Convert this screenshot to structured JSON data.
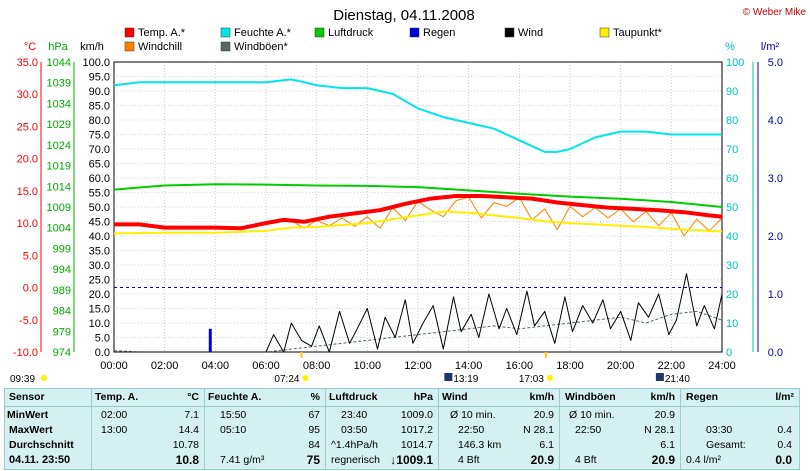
{
  "header": {
    "title": "Dienstag, 04.11.2008",
    "credit": "© Weber Mike"
  },
  "legend": [
    {
      "label": "Temp. A.*",
      "color": "#ff0000"
    },
    {
      "label": "Feuchte A.*",
      "color": "#00e5e5"
    },
    {
      "label": "Luftdruck",
      "color": "#00cc00"
    },
    {
      "label": "Regen",
      "color": "#0000dd"
    },
    {
      "label": "Wind",
      "color": "#000000"
    },
    {
      "label": "Taupunkt*",
      "color": "#ffee00"
    },
    {
      "label": "Windchill",
      "color": "#ff8000"
    },
    {
      "label": "Windböen*",
      "color": "#556666"
    }
  ],
  "axes": {
    "temp_unit": "°C",
    "hpa_unit": "hPa",
    "kmh_unit": "km/h",
    "pct_unit": "%",
    "rain_unit": "l/m²",
    "temp_ticks": [
      "35.0",
      "30.0",
      "25.0",
      "20.0",
      "15.0",
      "10.0",
      "5.0",
      "0.0",
      "-5.0",
      "-10.0"
    ],
    "hpa_ticks": [
      "1044",
      "1039",
      "1034",
      "1029",
      "1024",
      "1019",
      "1014",
      "1009",
      "1004",
      "999",
      "994",
      "989",
      "984",
      "979",
      "974"
    ],
    "kmh_ticks": [
      "100.0",
      "95.0",
      "90.0",
      "85.0",
      "80.0",
      "75.0",
      "70.0",
      "65.0",
      "60.0",
      "55.0",
      "50.0",
      "45.0",
      "40.0",
      "35.0",
      "30.0",
      "25.0",
      "20.0",
      "15.0",
      "10.0",
      "5.0",
      "0.0"
    ],
    "pct_ticks": [
      "100",
      "90",
      "80",
      "70",
      "60",
      "50",
      "40",
      "30",
      "20",
      "10",
      "0"
    ],
    "rain_ticks": [
      "5.0",
      "4.0",
      "3.0",
      "2.0",
      "1.0",
      "0.0"
    ],
    "time_ticks": [
      "00:00",
      "02:00",
      "04:00",
      "06:00",
      "08:00",
      "10:00",
      "12:00",
      "14:00",
      "16:00",
      "18:00",
      "20:00",
      "22:00",
      "24:00"
    ]
  },
  "events": [
    {
      "time": "09:39",
      "kind": "sunrise"
    },
    {
      "time": "07:24",
      "kind": "sunrise-marker"
    },
    {
      "time": "13:19",
      "kind": "moon"
    },
    {
      "time": "17:03",
      "kind": "sunset-marker"
    },
    {
      "time": "21:40",
      "kind": "moon"
    }
  ],
  "chart_data": {
    "type": "line",
    "title": "Dienstag, 04.11.2008",
    "x_unit": "hours",
    "xlim": [
      0,
      24
    ],
    "ylim_kmh": [
      0,
      100
    ],
    "series": [
      {
        "name": "Temp. A.*",
        "axis": "°C",
        "ylim": [
          -10,
          35
        ],
        "x": [
          0,
          1,
          2,
          3,
          4,
          5,
          6,
          6.7,
          7.5,
          8.5,
          9.5,
          10.5,
          11.5,
          12.5,
          13.5,
          14.5,
          15.5,
          16.5,
          17.5,
          18.5,
          19.5,
          20.5,
          21.5,
          22.5,
          23.5,
          24
        ],
        "y": [
          9.8,
          9.8,
          9.3,
          9.3,
          9.3,
          9.2,
          10.0,
          10.5,
          10.2,
          11.0,
          11.5,
          12.0,
          13.0,
          13.8,
          14.2,
          14.2,
          14.0,
          13.8,
          13.2,
          12.8,
          12.4,
          12.2,
          12.0,
          11.7,
          11.2,
          11.0
        ]
      },
      {
        "name": "Feuchte A.*",
        "axis": "%",
        "ylim": [
          0,
          100
        ],
        "x": [
          0,
          1,
          2,
          3,
          4,
          5,
          6,
          7,
          8,
          9,
          10,
          11,
          12,
          13,
          14,
          15,
          16,
          17,
          17.5,
          18,
          19,
          20,
          21,
          22,
          23,
          24
        ],
        "y": [
          92,
          93,
          93,
          93,
          93,
          93,
          93,
          94,
          92,
          91,
          91,
          89,
          84,
          81,
          79,
          77,
          73,
          69,
          69,
          70,
          74,
          76,
          76,
          75,
          75,
          75
        ]
      },
      {
        "name": "Luftdruck",
        "axis": "hPa",
        "ylim": [
          974,
          1044
        ],
        "x": [
          0,
          2,
          4,
          6,
          8,
          10,
          12,
          14,
          16,
          18,
          20,
          22,
          23,
          24
        ],
        "y": [
          1013.2,
          1014.2,
          1014.5,
          1014.4,
          1014.2,
          1014.1,
          1013.8,
          1013.0,
          1012.2,
          1011.5,
          1011.0,
          1010.2,
          1009.6,
          1009.0
        ]
      },
      {
        "name": "Regen",
        "axis": "l/m²",
        "ylim": [
          0,
          5
        ],
        "x": [
          3.8
        ],
        "y": [
          0.4
        ]
      },
      {
        "name": "Taupunkt*",
        "axis": "°C",
        "ylim": [
          -10,
          35
        ],
        "x": [
          0,
          2,
          4,
          6,
          7,
          8,
          10,
          12,
          13,
          14,
          15,
          16,
          17,
          18,
          19,
          20,
          21,
          22,
          23,
          24
        ],
        "y": [
          8.4,
          8.5,
          8.5,
          8.8,
          9.3,
          9.4,
          10.0,
          11.2,
          11.8,
          11.6,
          11.2,
          10.8,
          10.3,
          10.0,
          9.8,
          9.6,
          9.4,
          9.1,
          8.9,
          8.7
        ]
      },
      {
        "name": "Windchill",
        "axis": "°C",
        "ylim": [
          -10,
          35
        ],
        "x": [
          0,
          1,
          2,
          3,
          4,
          5,
          6,
          6.5,
          7,
          7.5,
          8,
          8.5,
          9,
          9.5,
          10,
          10.5,
          11,
          11.5,
          12,
          12.5,
          13,
          13.5,
          14,
          14.5,
          15,
          15.5,
          16,
          16.5,
          17,
          17.5,
          18,
          18.5,
          19,
          19.5,
          20,
          20.5,
          21,
          21.5,
          22,
          22.5,
          23,
          23.5,
          24
        ],
        "y": [
          9.8,
          9.8,
          9.3,
          9.3,
          9.3,
          9.2,
          10.0,
          10.3,
          10.4,
          9.2,
          10.4,
          9.6,
          10.8,
          9.5,
          11.0,
          9.2,
          12.4,
          10.4,
          13.4,
          12.0,
          11.0,
          13.5,
          14.0,
          10.8,
          13.2,
          12.6,
          14.0,
          10.5,
          12.2,
          9.0,
          12.6,
          11.0,
          12.4,
          10.8,
          12.2,
          10.2,
          11.8,
          9.6,
          11.6,
          8.0,
          10.6,
          8.8,
          10.8
        ]
      },
      {
        "name": "Wind",
        "axis": "km/h",
        "x": [
          0,
          0.5,
          1,
          2,
          3,
          4,
          5,
          6,
          6.3,
          6.7,
          7,
          7.4,
          7.8,
          8.1,
          8.5,
          8.9,
          9.3,
          9.6,
          10,
          10.4,
          10.7,
          11.1,
          11.5,
          11.8,
          12.2,
          12.6,
          13,
          13.4,
          13.7,
          14.1,
          14.4,
          14.8,
          15.2,
          15.5,
          15.9,
          16.3,
          16.6,
          17,
          17.4,
          17.8,
          18.1,
          18.5,
          18.9,
          19.3,
          19.6,
          20,
          20.4,
          20.7,
          21.1,
          21.5,
          21.9,
          22.2,
          22.6,
          23,
          23.3,
          23.7,
          24
        ],
        "y": [
          0,
          0,
          0,
          0,
          0,
          0,
          0,
          0,
          6,
          0,
          10,
          4,
          2,
          9,
          0,
          14,
          3,
          8,
          15,
          1,
          12,
          5,
          18,
          3,
          10,
          16,
          1,
          19,
          7,
          13,
          5,
          20,
          8,
          15,
          6,
          21,
          9,
          14,
          3,
          19,
          7,
          16,
          10,
          18,
          8,
          14,
          4,
          17,
          12,
          20,
          6,
          11,
          27,
          9,
          16,
          8,
          20
        ]
      },
      {
        "name": "Windböen*",
        "axis": "km/h",
        "x": [
          0,
          1,
          2,
          4,
          6,
          7,
          8,
          9,
          10,
          11,
          12,
          13,
          14,
          15,
          16,
          17,
          18,
          19,
          20,
          21,
          22,
          23,
          24
        ],
        "y": [
          0.5,
          0,
          0,
          0,
          0,
          1,
          2,
          3,
          4,
          5,
          6,
          7,
          8,
          9,
          8,
          9,
          10,
          11,
          12,
          10,
          13,
          14,
          11
        ]
      }
    ]
  },
  "stats": {
    "col_sensor": {
      "header": "Sensor",
      "rows": [
        "MinWert",
        "MaxWert",
        "Durchschnitt",
        "04.11. 23:50"
      ]
    },
    "col_temp": {
      "header": "Temp. A.",
      "unit": "°C",
      "rows": [
        [
          "02:00",
          "7.1"
        ],
        [
          "13:00",
          "14.4"
        ],
        [
          "",
          "10.78"
        ],
        [
          "",
          "10.8"
        ]
      ]
    },
    "col_hum": {
      "header": "Feuchte A.",
      "unit": "%",
      "rows": [
        [
          "15:50",
          "67"
        ],
        [
          "05:10",
          "95"
        ],
        [
          "",
          "84"
        ],
        [
          "7.41 g/m³",
          "75"
        ]
      ]
    },
    "col_press": {
      "header": "Luftdruck",
      "unit": "hPa",
      "rows": [
        [
          "23:40",
          "1009.0"
        ],
        [
          "03:50",
          "1017.2"
        ],
        [
          "^1.4hPa/h",
          "1014.7"
        ],
        [
          "regnerisch",
          "↓1009.1"
        ]
      ]
    },
    "col_wind": {
      "header": "Wind",
      "unit": "km/h",
      "rows": [
        [
          "Ø 10 min.",
          "20.9"
        ],
        [
          "22:50",
          "N 28.1"
        ],
        [
          "146.3 km",
          "6.1"
        ],
        [
          "4 Bft",
          "20.9"
        ]
      ]
    },
    "col_gust": {
      "header": "Windböen",
      "unit": "km/h",
      "rows": [
        [
          "Ø 10 min.",
          "20.9"
        ],
        [
          "22:50",
          "N 28.1"
        ],
        [
          "",
          "6.1"
        ],
        [
          "4 Bft",
          "20.9"
        ]
      ]
    },
    "col_rain": {
      "header": "Regen",
      "unit": "l/m²",
      "rows": [
        [
          "",
          ""
        ],
        [
          "03:30",
          "0.4"
        ],
        [
          "Gesamt:",
          "0.4"
        ],
        [
          "0.4 l/m²",
          "0.0"
        ]
      ]
    }
  }
}
